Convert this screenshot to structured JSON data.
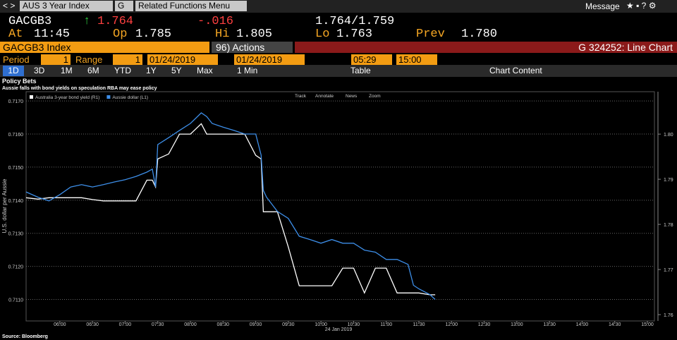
{
  "toolbar": {
    "security": "AUS 3 Year Index",
    "source": "G",
    "menu": "Related Functions Menu",
    "message": "Message"
  },
  "quote": {
    "ticker": "GACGB3",
    "last": "1.764",
    "change": "-.016",
    "bid_ask": "1.764/1.759",
    "at_label": "At",
    "at": "11:45",
    "open_label": "Op",
    "open": "1.785",
    "high_label": "Hi",
    "high": "1.805",
    "low_label": "Lo",
    "low": "1.763",
    "prev_label": "Prev",
    "prev": "1.780"
  },
  "header": {
    "security": "GACGB3 Index",
    "actions": "96) Actions",
    "function": "G 324252: Line Chart"
  },
  "controls": {
    "period_label": "Period",
    "period": "1",
    "range_label": "Range",
    "range": "1",
    "start_date": "01/24/2019",
    "end_date": "01/24/2019",
    "start_time": "05:29",
    "end_time": "15:00"
  },
  "buttons": [
    "1D",
    "3D",
    "1M",
    "6M",
    "YTD",
    "1Y",
    "5Y",
    "Max",
    "1 Min",
    "Table",
    "Chart Content"
  ],
  "chart_tools": [
    "Track",
    "Annotate",
    "News",
    "Zoom"
  ],
  "chart_data": {
    "type": "line",
    "title": "Policy Bets",
    "subtitle": "Aussie falls with bond yields on speculation RBA may ease policy",
    "x_label": "24 Jan 2019",
    "ylabel": "U.S. dollar per Aussie",
    "source": "Source: Bloomberg",
    "x": [
      "05:29",
      "05:40",
      "05:50",
      "06:00",
      "06:10",
      "06:20",
      "06:30",
      "06:40",
      "06:50",
      "07:00",
      "07:10",
      "07:20",
      "07:25",
      "07:28",
      "07:30",
      "07:40",
      "07:50",
      "08:00",
      "08:10",
      "08:15",
      "08:20",
      "08:30",
      "08:40",
      "08:50",
      "09:00",
      "09:05",
      "09:07",
      "09:10",
      "09:20",
      "09:30",
      "09:40",
      "09:50",
      "10:00",
      "10:10",
      "10:20",
      "10:30",
      "10:40",
      "10:50",
      "11:00",
      "11:10",
      "11:20",
      "11:25",
      "11:30",
      "11:40",
      "11:45"
    ],
    "series": [
      {
        "name": "Australia 3-year bond yield (R1)",
        "color": "#ffffff",
        "axis": "y2",
        "values": [
          1.7859,
          1.7856,
          1.7859,
          1.7859,
          1.7859,
          1.7859,
          1.7855,
          1.7852,
          1.7852,
          1.7852,
          1.7852,
          1.7898,
          1.7898,
          1.7883,
          1.7945,
          1.7956,
          1.8,
          1.8,
          1.8023,
          1.8,
          1.8,
          1.8,
          1.8,
          1.8,
          1.7953,
          1.7945,
          1.7828,
          1.7828,
          1.7828,
          1.775,
          1.7664,
          1.7664,
          1.7664,
          1.7664,
          1.7703,
          1.7703,
          1.7648,
          1.7703,
          1.7703,
          1.7648,
          1.7648,
          1.7648,
          1.7648,
          1.7644,
          1.7644
        ]
      },
      {
        "name": "Aussie dollar (L1)",
        "color": "#3d8ee8",
        "values": [
          0.71425,
          0.71409,
          0.71398,
          0.71417,
          0.7144,
          0.71447,
          0.7144,
          0.71447,
          0.71455,
          0.71462,
          0.71472,
          0.71485,
          0.71494,
          0.7144,
          0.71568,
          0.71589,
          0.71611,
          0.71632,
          0.71664,
          0.71653,
          0.71632,
          0.71621,
          0.71611,
          0.716,
          0.716,
          0.71536,
          0.7143,
          0.71409,
          0.71366,
          0.71345,
          0.71291,
          0.71281,
          0.7127,
          0.71281,
          0.7127,
          0.7127,
          0.71249,
          0.71243,
          0.71221,
          0.71221,
          0.71206,
          0.71143,
          0.71132,
          0.71115,
          0.711
        ]
      }
    ],
    "xlim": [
      "05:29",
      "15:00"
    ],
    "xticks": [
      "06:00",
      "06:30",
      "07:00",
      "07:30",
      "08:00",
      "08:30",
      "09:00",
      "09:30",
      "10:00",
      "10:30",
      "11:00",
      "11:30",
      "12:00",
      "12:30",
      "13:00",
      "13:30",
      "14:00",
      "14:30",
      "15:00"
    ],
    "ylim": [
      0.71035,
      0.71728
    ],
    "yticks": [
      {
        "value": 0.711,
        "label": "0.7110"
      },
      {
        "value": 0.712,
        "label": "0.7120"
      },
      {
        "value": 0.713,
        "label": "0.7130"
      },
      {
        "value": 0.714,
        "label": "0.7140"
      },
      {
        "value": 0.715,
        "label": "0.7150"
      },
      {
        "value": 0.716,
        "label": "0.7160"
      },
      {
        "value": 0.717,
        "label": "0.7170"
      }
    ],
    "y2lim": [
      1.7586,
      1.8094
    ],
    "y2ticks": [
      1.76,
      1.77,
      1.78,
      1.79,
      {
        "value": 1.8,
        "label": "1.80"
      }
    ],
    "grid": true
  }
}
